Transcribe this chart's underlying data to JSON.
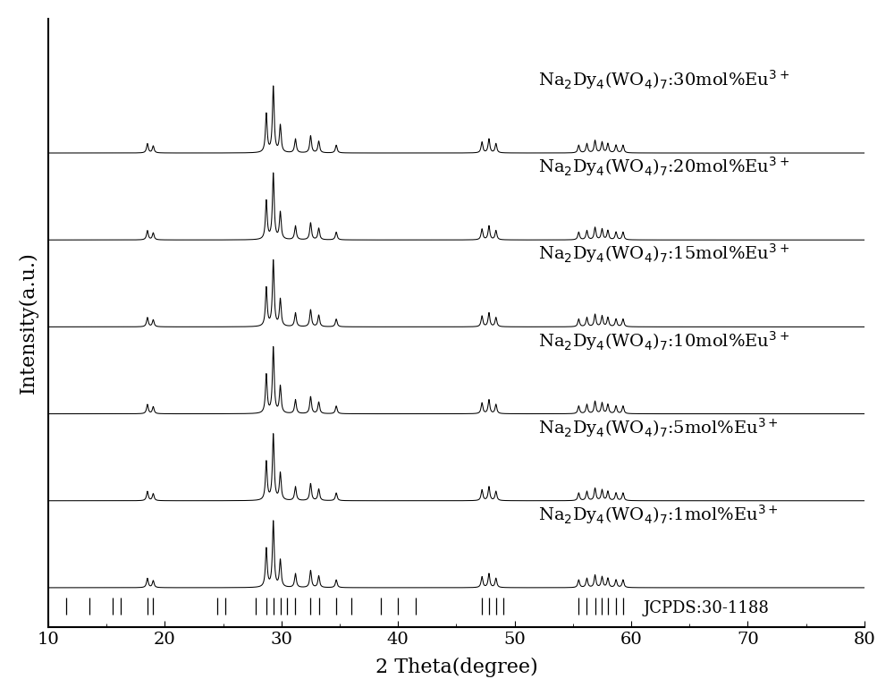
{
  "xlabel": "2 Theta(degree)",
  "ylabel": "Intensity(a.u.)",
  "xlim": [
    10,
    80
  ],
  "x_ticks": [
    10,
    20,
    30,
    40,
    50,
    60,
    70,
    80
  ],
  "labels": [
    "Na$_2$Dy$_4$(WO$_4$)$_7$:1mol%Eu$^{3+}$",
    "Na$_2$Dy$_4$(WO$_4$)$_7$:5mol%Eu$^{3+}$",
    "Na$_2$Dy$_4$(WO$_4$)$_7$:10mol%Eu$^{3+}$",
    "Na$_2$Dy$_4$(WO$_4$)$_7$:15mol%Eu$^{3+}$",
    "Na$_2$Dy$_4$(WO$_4$)$_7$:20mol%Eu$^{3+}$",
    "Na$_2$Dy$_4$(WO$_4$)$_7$:30mol%Eu$^{3+}$"
  ],
  "offsets": [
    0.0,
    1.1,
    2.2,
    3.3,
    4.4,
    5.5
  ],
  "peak_positions": [
    18.5,
    19.0,
    28.7,
    29.3,
    29.9,
    31.2,
    32.5,
    33.2,
    34.7,
    47.2,
    47.8,
    48.4,
    55.5,
    56.2,
    56.9,
    57.5,
    58.0,
    58.7,
    59.3
  ],
  "peak_heights": [
    0.12,
    0.09,
    0.5,
    0.85,
    0.35,
    0.18,
    0.22,
    0.15,
    0.1,
    0.14,
    0.18,
    0.12,
    0.1,
    0.12,
    0.16,
    0.14,
    0.12,
    0.1,
    0.1
  ],
  "jcpds_positions": [
    11.5,
    13.5,
    15.5,
    16.2,
    18.5,
    19.0,
    24.5,
    25.2,
    27.8,
    28.7,
    29.3,
    29.9,
    30.5,
    31.2,
    32.5,
    33.2,
    34.7,
    36.0,
    38.5,
    40.0,
    41.5,
    47.2,
    47.8,
    48.4,
    49.0,
    55.5,
    56.2,
    56.9,
    57.5,
    58.0,
    58.7,
    59.3
  ],
  "background_color": "#ffffff",
  "line_color": "#000000",
  "label_fontsize": 14,
  "axis_fontsize": 16,
  "tick_fontsize": 14
}
